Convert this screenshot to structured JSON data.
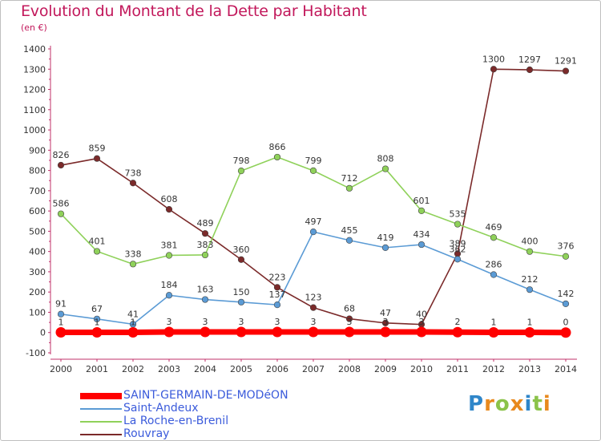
{
  "header": {
    "title": "Evolution du Montant de la Dette par Habitant",
    "unit": "(en €)"
  },
  "brand": {
    "letters": [
      "P",
      "r",
      "o",
      "x",
      "i",
      "t",
      "i"
    ],
    "colors": [
      "#2f86c9",
      "#e8891d",
      "#8bc34a",
      "#e8891d",
      "#2f86c9",
      "#8bc34a",
      "#e8891d"
    ]
  },
  "chart_data": {
    "type": "line",
    "x": [
      2000,
      2001,
      2002,
      2003,
      2004,
      2005,
      2006,
      2007,
      2008,
      2009,
      2010,
      2011,
      2012,
      2013,
      2014
    ],
    "ylim": [
      -100,
      1400
    ],
    "yticks": [
      -100,
      0,
      100,
      200,
      300,
      400,
      500,
      600,
      700,
      800,
      900,
      1000,
      1100,
      1200,
      1300,
      1400
    ],
    "grid": false,
    "legend_position": "bottom-left",
    "series": [
      {
        "name": "SAINT-GERMAIN-DE-MODéON",
        "color": "#ff0000",
        "values": [
          1,
          1,
          1,
          3,
          3,
          3,
          3,
          3,
          3,
          3,
          3,
          2,
          1,
          1,
          0
        ]
      },
      {
        "name": "Saint-Andeux",
        "color": "#5b9bd5",
        "values": [
          91,
          67,
          41,
          184,
          163,
          150,
          137,
          497,
          455,
          419,
          434,
          362,
          286,
          212,
          142
        ]
      },
      {
        "name": "La Roche-en-Brenil",
        "color": "#8fd15a",
        "values": [
          586,
          401,
          338,
          381,
          383,
          798,
          866,
          799,
          712,
          808,
          601,
          535,
          469,
          400,
          376
        ]
      },
      {
        "name": "Rouvray",
        "color": "#7b2a2a",
        "values": [
          826,
          859,
          738,
          608,
          489,
          360,
          223,
          123,
          68,
          47,
          40,
          389,
          1300,
          1297,
          1291
        ]
      }
    ]
  }
}
